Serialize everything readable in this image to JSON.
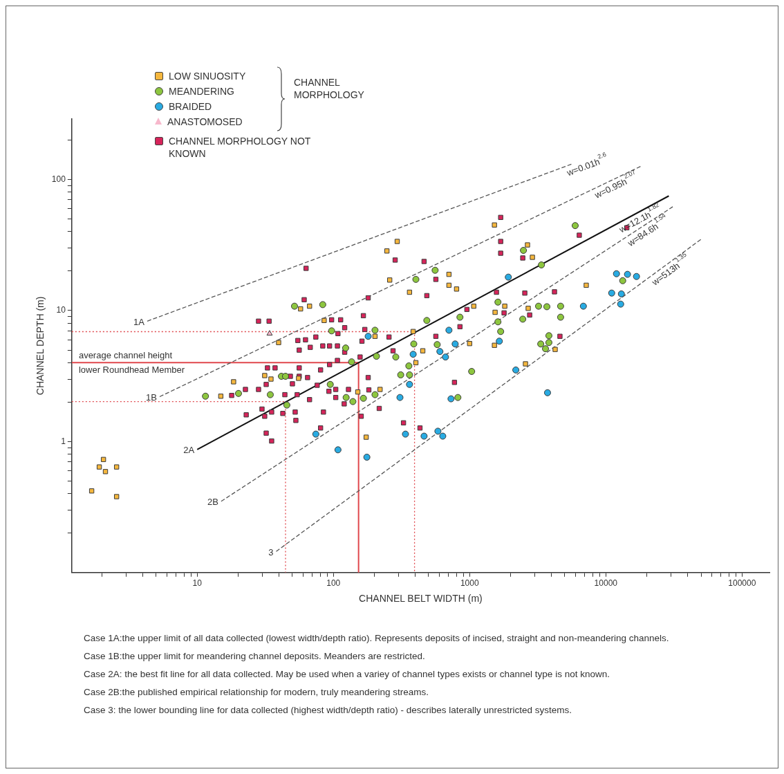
{
  "chart_data": {
    "type": "scatter",
    "xlabel": "CHANNEL BELT WIDTH (m)",
    "ylabel": "CHANNEL DEPTH (m)",
    "legend_title": "CHANNEL MORPHOLOGY",
    "legend": "top left",
    "grid": false,
    "log": "xy",
    "xlim": [
      1.2,
      159000
    ],
    "ylim": [
      0.1,
      290
    ],
    "xticks": [
      {
        "value": 2,
        "label": null
      },
      {
        "value": 3,
        "label": null
      },
      {
        "value": 4,
        "label": null
      },
      {
        "value": 5,
        "label": null
      },
      {
        "value": 6,
        "label": null
      },
      {
        "value": 7,
        "label": null
      },
      {
        "value": 8,
        "label": null
      },
      {
        "value": 9,
        "label": null
      },
      10,
      {
        "value": 20,
        "label": null
      },
      {
        "value": 30,
        "label": null
      },
      {
        "value": 40,
        "label": null
      },
      {
        "value": 50,
        "label": null
      },
      {
        "value": 60,
        "label": null
      },
      {
        "value": 70,
        "label": null
      },
      {
        "value": 80,
        "label": null
      },
      {
        "value": 90,
        "label": null
      },
      100,
      {
        "value": 200,
        "label": null
      },
      {
        "value": 300,
        "label": null
      },
      {
        "value": 400,
        "label": null
      },
      {
        "value": 500,
        "label": null
      },
      {
        "value": 600,
        "label": null
      },
      {
        "value": 700,
        "label": null
      },
      {
        "value": 800,
        "label": null
      },
      {
        "value": 900,
        "label": null
      },
      1000,
      {
        "value": 2000,
        "label": null
      },
      {
        "value": 3000,
        "label": null
      },
      {
        "value": 4000,
        "label": null
      },
      {
        "value": 5000,
        "label": null
      },
      {
        "value": 6000,
        "label": null
      },
      {
        "value": 7000,
        "label": null
      },
      {
        "value": 8000,
        "label": null
      },
      {
        "value": 9000,
        "label": null
      },
      10000,
      {
        "value": 20000,
        "label": null
      },
      {
        "value": 30000,
        "label": null
      },
      {
        "value": 40000,
        "label": null
      },
      {
        "value": 50000,
        "label": null
      },
      {
        "value": 60000,
        "label": null
      },
      {
        "value": 70000,
        "label": null
      },
      {
        "value": 80000,
        "label": null
      },
      {
        "value": 90000,
        "label": null
      },
      100000
    ],
    "yticks": [
      {
        "value": 0.2,
        "label": null
      },
      {
        "value": 0.3,
        "label": null
      },
      {
        "value": 0.4,
        "label": null
      },
      {
        "value": 0.5,
        "label": null
      },
      {
        "value": 0.6,
        "label": null
      },
      {
        "value": 0.7,
        "label": null
      },
      {
        "value": 0.8,
        "label": null
      },
      {
        "value": 0.9,
        "label": null
      },
      1,
      {
        "value": 2,
        "label": null
      },
      {
        "value": 3,
        "label": null
      },
      {
        "value": 4,
        "label": null
      },
      {
        "value": 5,
        "label": null
      },
      {
        "value": 6,
        "label": null
      },
      {
        "value": 7,
        "label": null
      },
      {
        "value": 8,
        "label": null
      },
      {
        "value": 9,
        "label": null
      },
      10,
      {
        "value": 20,
        "label": null
      },
      {
        "value": 30,
        "label": null
      },
      {
        "value": 40,
        "label": null
      },
      {
        "value": 50,
        "label": null
      },
      {
        "value": 60,
        "label": null
      },
      {
        "value": 70,
        "label": null
      },
      {
        "value": 80,
        "label": null
      },
      {
        "value": 90,
        "label": null
      },
      100,
      {
        "value": 200,
        "label": null
      }
    ],
    "series": [
      {
        "name": "1A",
        "type": "line",
        "color": "#555555",
        "line_style": "dashed",
        "x": [
          4.3,
          5700
        ],
        "values": [
          8.3,
          132
        ]
      },
      {
        "name": "1B",
        "type": "line",
        "color": "#555555",
        "line_style": "dashed",
        "x": [
          5.3,
          18000
        ],
        "values": [
          2.2,
          126
        ]
      },
      {
        "name": "2A",
        "type": "line",
        "color": "#111111",
        "line_style": "solid",
        "x": [
          10,
          29000
        ],
        "values": [
          0.87,
          75
        ]
      },
      {
        "name": "2B",
        "type": "line",
        "color": "#555555",
        "line_style": "dashed",
        "x": [
          15,
          31000
        ],
        "values": [
          0.35,
          62
        ]
      },
      {
        "name": "3",
        "type": "line",
        "color": "#555555",
        "line_style": "dashed",
        "x": [
          38,
          50000
        ],
        "values": [
          0.145,
          35
        ]
      },
      {
        "type": "line",
        "color": "#e0474c",
        "line_style": "dotted",
        "x": [
          1.2,
          394,
          394
        ],
        "values": [
          6.9,
          6.9,
          0.1
        ]
      },
      {
        "type": "line",
        "color": "#e0474c",
        "line_style": "solid",
        "x": [
          1.2,
          153,
          153
        ],
        "values": [
          4,
          4,
          0.1
        ]
      },
      {
        "type": "line",
        "color": "#e0474c",
        "line_style": "dotted",
        "x": [
          1.2,
          44.5,
          44.5
        ],
        "values": [
          2.02,
          2.02,
          0.1
        ]
      },
      {
        "name": "LOW SINUOSITY",
        "marker": "square",
        "color": "#f5b73e",
        "x": [
          2.05,
          1.91,
          2.12,
          2.56,
          1.68,
          2.56,
          18.5,
          14.9,
          31.3,
          34.8,
          55.5,
          174,
          220,
          151,
          247,
          259,
          294,
          57.4,
          66.8,
          85.5,
          39.6,
          202,
          1521,
          362,
          705,
          705,
          802,
          2660,
          2890,
          7180,
          1072,
          1811,
          1538,
          2692,
          1000,
          1521,
          453,
          385,
          403,
          2570,
          4246
        ],
        "values": [
          0.73,
          0.64,
          0.59,
          0.64,
          0.42,
          0.38,
          2.86,
          2.22,
          3.19,
          3.0,
          3.04,
          1.08,
          2.5,
          2.39,
          28.5,
          17.1,
          33.7,
          10.3,
          10.8,
          8.4,
          5.7,
          6.36,
          45,
          13.8,
          18.9,
          15.6,
          14.6,
          31.7,
          25.5,
          15.6,
          10.8,
          10.8,
          9.7,
          10.4,
          5.6,
          5.43,
          4.93,
          6.92,
          4.0,
          3.92,
          5.05
        ]
      },
      {
        "name": "MEANDERING",
        "marker": "circle",
        "color": "#8dc63f",
        "x": [
          51.8,
          83.5,
          97,
          123,
          136,
          207,
          202,
          11.5,
          20.1,
          34.4,
          41.5,
          44.5,
          45.5,
          94.8,
          124,
          139,
          166,
          202,
          558,
          403,
          485,
          849,
          1614,
          1614,
          1690,
          2455,
          3206,
          3690,
          4656,
          4656,
          3365,
          2483,
          5957,
          13300,
          578,
          287,
          358,
          312,
          362,
          1035,
          3327,
          3819,
          3819,
          3606,
          389,
          820
        ],
        "values": [
          10.8,
          11.1,
          7.0,
          5.18,
          4.06,
          4.48,
          7.08,
          2.22,
          2.33,
          2.28,
          3.15,
          3.15,
          1.9,
          2.73,
          2.17,
          2.02,
          2.14,
          2.28,
          20.3,
          17.3,
          8.4,
          8.9,
          11.6,
          8.2,
          6.92,
          8.6,
          10.8,
          10.7,
          10.8,
          8.9,
          22.3,
          28.8,
          44.5,
          16.9,
          5.5,
          4.42,
          3.78,
          3.23,
          3.23,
          3.43,
          5.56,
          5.7,
          6.43,
          5.11,
          5.56,
          2.17
        ]
      },
      {
        "name": "BRAIDED",
        "marker": "circle",
        "color": "#29abe2",
        "x": [
          180,
          74.3,
          108,
          176,
          1923,
          6840,
          705,
          783,
          605,
          665,
          1652,
          2183,
          385,
          362,
          308,
          730,
          338,
          463,
          585,
          635,
          3732,
          11970,
          14420,
          16790,
          11040,
          13000,
          12850
        ],
        "values": [
          6.36,
          1.14,
          0.865,
          0.76,
          18,
          10.8,
          7.08,
          5.56,
          4.87,
          4.42,
          5.84,
          3.52,
          4.64,
          2.73,
          2.17,
          2.12,
          1.14,
          1.1,
          1.2,
          1.1,
          2.36,
          19.1,
          18.9,
          18.2,
          13.6,
          13.4,
          11.2
        ]
      },
      {
        "name": "ANASTOMOSED",
        "marker": "triangle",
        "color": "#f7b8cc",
        "x": [
          34
        ],
        "values": [
          6.67
        ]
      },
      {
        "name": "CHANNEL MORPHOLOGY NOT KNOWN",
        "marker": "square",
        "color": "#d6245a",
        "x": [
          63,
          61,
          28.2,
          33.7,
          97,
          113,
          121,
          108,
          74.3,
          54.8,
          62.4,
          56.1,
          67.6,
          83.5,
          93.7,
          107,
          121,
          180,
          166,
          170,
          162,
          157,
          107,
          93.7,
          32.8,
          37.3,
          56.1,
          80.5,
          56.1,
          64.6,
          180,
          48.3,
          32.1,
          50,
          22.6,
          28.2,
          17.9,
          44,
          54.2,
          76,
          104,
          129,
          182,
          104,
          66.8,
          29.9,
          35.2,
          42.5,
          22.9,
          31.3,
          52.4,
          53,
          84.5,
          80.5,
          32.1,
          35.2,
          160,
          217,
          92.7,
          120,
          1690,
          1690,
          1690,
          2455,
          284,
          463,
          565,
          485,
          1574,
          2541,
          4198,
          955,
          1790,
          2759,
          849,
          565,
          4603,
          256,
          274,
          6383,
          14260,
          774,
          327,
          432
        ],
        "values": [
          21,
          12.1,
          8.3,
          8.3,
          8.5,
          8.5,
          7.4,
          6.67,
          6.28,
          5.91,
          5.98,
          4.99,
          5.24,
          5.37,
          5.37,
          5.37,
          4.81,
          12.5,
          9.14,
          7.17,
          5.84,
          4.42,
          4.16,
          3.87,
          3.65,
          3.65,
          3.65,
          3.52,
          3.15,
          3.08,
          3.08,
          3.15,
          2.73,
          2.76,
          2.5,
          2.5,
          2.25,
          2.28,
          2.28,
          2.69,
          2.5,
          2.5,
          2.48,
          2.17,
          2.09,
          1.77,
          1.68,
          1.64,
          1.6,
          1.56,
          1.68,
          1.45,
          1.68,
          1.27,
          1.16,
          1.01,
          1.56,
          1.79,
          2.42,
          1.94,
          51.4,
          33.7,
          27.4,
          25.2,
          24.3,
          23.7,
          17.3,
          13.0,
          13.8,
          13.6,
          13.9,
          10.2,
          9.6,
          9.25,
          7.53,
          6.36,
          6.36,
          6.28,
          4.93,
          37.6,
          42.9,
          2.83,
          1.39,
          1.27
        ]
      }
    ],
    "annotations": [
      {
        "text": "w=0.01h$^{2.6}$",
        "x": 5000,
        "y": 125.6
      },
      {
        "text": "w=0.95h$^{2.07}$",
        "x": 7960,
        "y": 84
      },
      {
        "text": "w=12.1h$^{1.82}$",
        "x": 12000,
        "y": 45.8
      },
      {
        "text": "w=84.6h$^{1.54}$",
        "x": 13770,
        "y": 35.7
      },
      {
        "text": "w=513h$^{1.35}$",
        "x": 20700,
        "y": 17.8
      },
      {
        "text": "average channel height",
        "x": 1.35,
        "y": 4
      },
      {
        "text": "lower Roundhead Member",
        "x": 1.35,
        "y": 4
      },
      "Case 1A:the upper limit of all data collected (lowest width/depth ratio).  Represents deposits of incised, straight and non-meandering channels.",
      "Case 1B:the upper limit for meandering channel deposits.  Meanders are restricted.",
      "Case 2A:   the best fit line for all data collected.  May be used when a variey of channel types exists or channel type is not known.",
      "Case 2B:the published empirical relationship for modern, truly meandering streams.",
      "Case 3:     the lower bounding line for data collected (highest width/depth ratio) - describes laterally unrestricted systems."
    ]
  }
}
